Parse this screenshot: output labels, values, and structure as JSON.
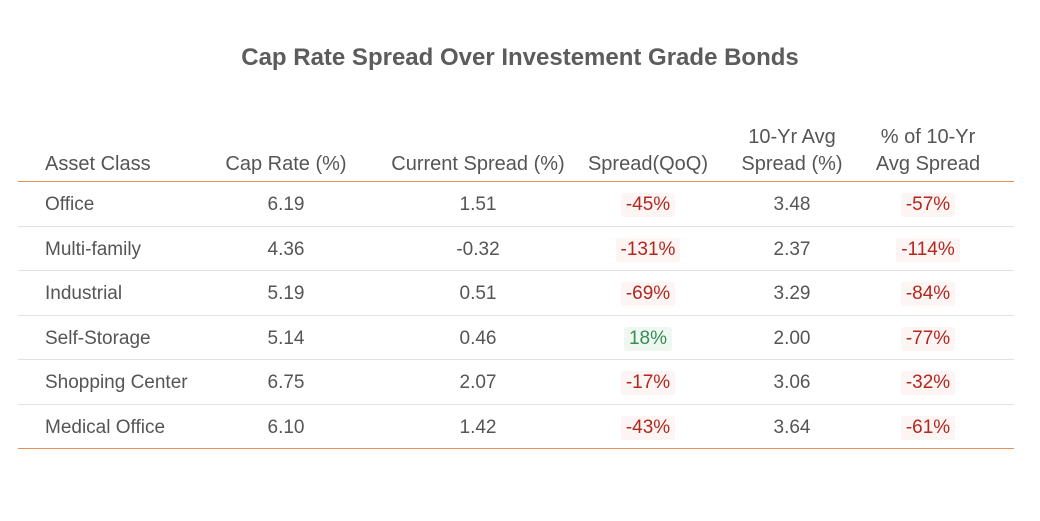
{
  "chart_data": {
    "type": "table",
    "title": "Cap Rate Spread Over Investement Grade Bonds",
    "columns": [
      "Asset Class",
      "Cap Rate (%)",
      "Current Spread (%)",
      "Spread(QoQ)",
      "10-Yr Avg Spread (%)",
      "% of 10-Yr Avg Spread"
    ],
    "header_lines": {
      "avg_spread": [
        "10-Yr Avg",
        "Spread (%)"
      ],
      "pct_avg": [
        "% of 10-Yr",
        "Avg Spread"
      ]
    },
    "rows": [
      {
        "asset": "Office",
        "cap_rate": "6.19",
        "current_spread": "1.51",
        "spread_qoq": "-45%",
        "avg_spread": "3.48",
        "pct_avg": "-57%",
        "qoq_sign": "neg",
        "pct_sign": "neg"
      },
      {
        "asset": "Multi-family",
        "cap_rate": "4.36",
        "current_spread": "-0.32",
        "spread_qoq": "-131%",
        "avg_spread": "2.37",
        "pct_avg": "-114%",
        "qoq_sign": "neg",
        "pct_sign": "neg"
      },
      {
        "asset": "Industrial",
        "cap_rate": "5.19",
        "current_spread": "0.51",
        "spread_qoq": "-69%",
        "avg_spread": "3.29",
        "pct_avg": "-84%",
        "qoq_sign": "neg",
        "pct_sign": "neg"
      },
      {
        "asset": "Self-Storage",
        "cap_rate": "5.14",
        "current_spread": "0.46",
        "spread_qoq": "18%",
        "avg_spread": "2.00",
        "pct_avg": "-77%",
        "qoq_sign": "pos",
        "pct_sign": "neg"
      },
      {
        "asset": "Shopping Center",
        "cap_rate": "6.75",
        "current_spread": "2.07",
        "spread_qoq": "-17%",
        "avg_spread": "3.06",
        "pct_avg": "-32%",
        "qoq_sign": "neg",
        "pct_sign": "neg"
      },
      {
        "asset": "Medical Office",
        "cap_rate": "6.10",
        "current_spread": "1.42",
        "spread_qoq": "-43%",
        "avg_spread": "3.64",
        "pct_avg": "-61%",
        "qoq_sign": "neg",
        "pct_sign": "neg"
      }
    ]
  },
  "colors": {
    "negative": "#b2281f",
    "positive": "#3a8a5a",
    "rule": "#e8905a"
  }
}
